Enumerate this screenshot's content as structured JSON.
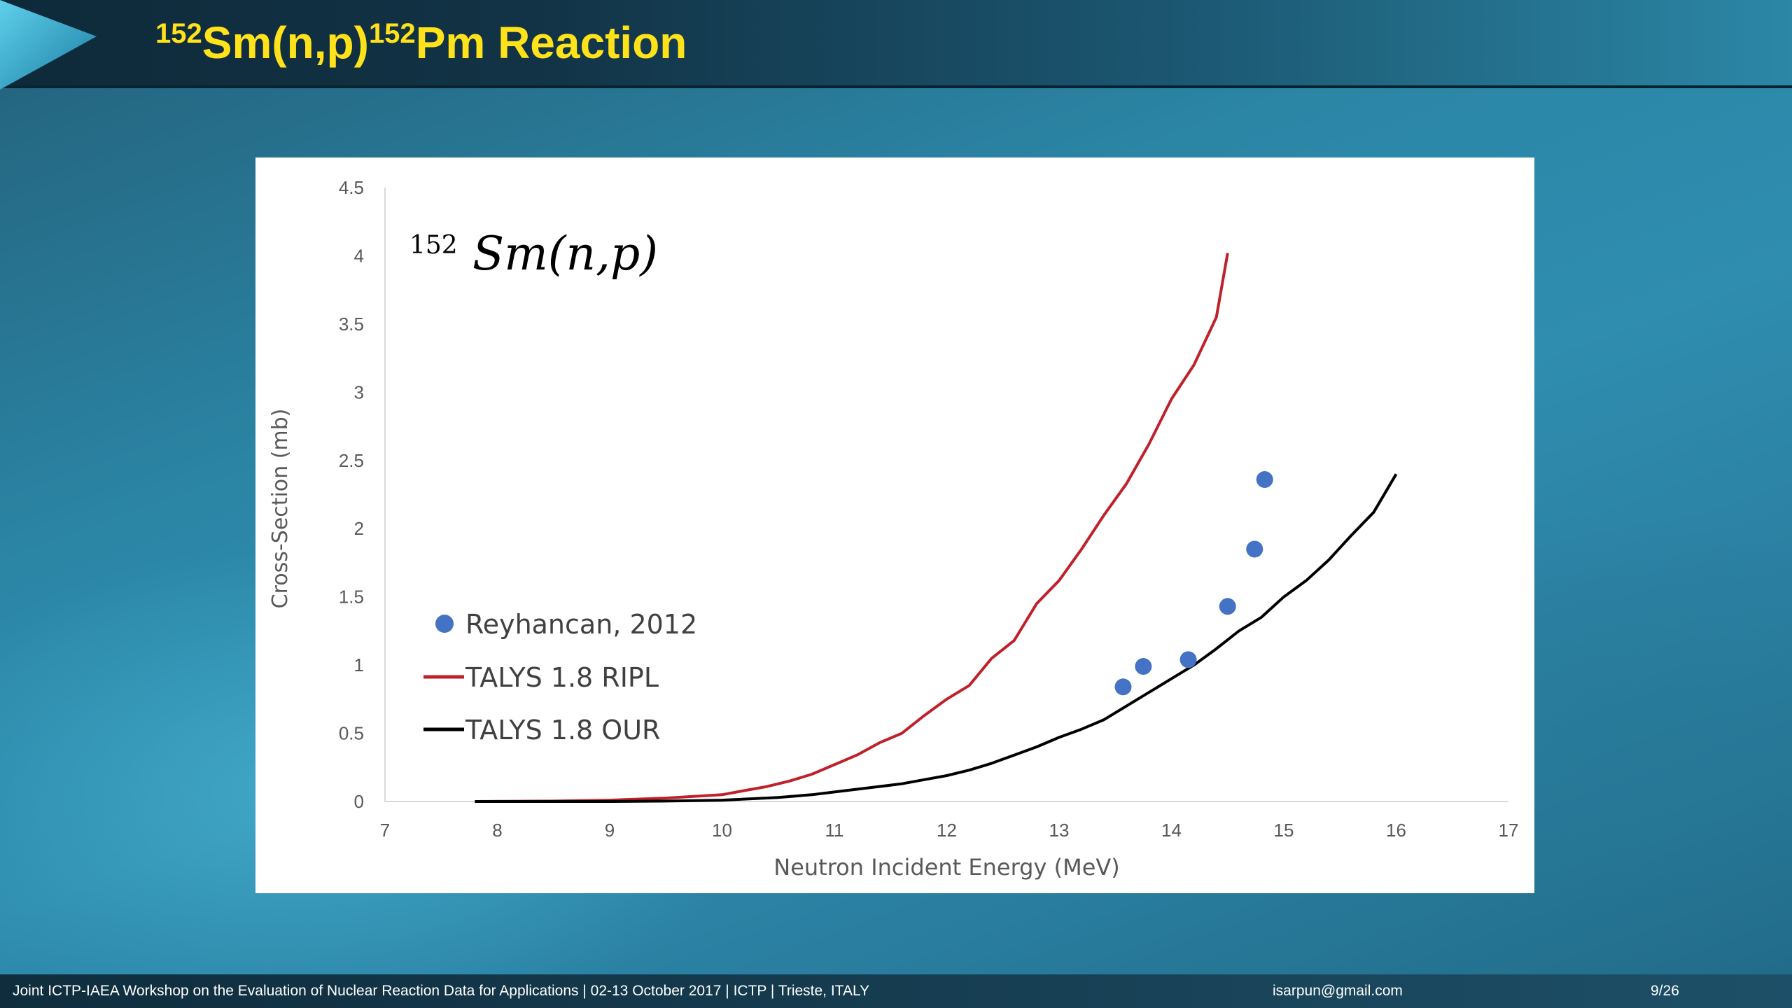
{
  "slide": {
    "title": {
      "sup1": "152",
      "main1": "Sm(n,p)",
      "sup2": "152",
      "main2": "Pm Reaction"
    }
  },
  "footer": {
    "workshop": "Joint ICTP-IAEA Workshop on the Evaluation of Nuclear Reaction Data for Applications |   02-13 October 2017   |   ICTP   |   Trieste, ITALY",
    "email": "isarpun@gmail.com",
    "page": "9/26"
  },
  "colors": {
    "title": "#ffe21a",
    "series_ripl": "#c0202a",
    "series_our": "#000000",
    "series_exp": "#4472c4",
    "axis": "#d9d9d9",
    "tick_text": "#595959"
  },
  "chart_data": {
    "type": "scatter",
    "annotation": {
      "sup": "152",
      "main": "Sm(n,p)"
    },
    "xlabel": "Neutron Incident Energy (MeV)",
    "ylabel": "Cross-Section  (mb)",
    "xlim": [
      7,
      17
    ],
    "ylim": [
      0,
      4.5
    ],
    "xticks": [
      "7",
      "8",
      "9",
      "10",
      "11",
      "12",
      "13",
      "14",
      "15",
      "16",
      "17"
    ],
    "yticks": [
      "0",
      "0.5",
      "1",
      "1.5",
      "2",
      "2.5",
      "3",
      "3.5",
      "4",
      "4.5"
    ],
    "grid": false,
    "legend_position": "left-middle",
    "series": [
      {
        "name": "Reyhancan, 2012",
        "kind": "points",
        "x": [
          13.57,
          13.75,
          14.15,
          14.5,
          14.74,
          14.83
        ],
        "y": [
          0.84,
          0.99,
          1.04,
          1.43,
          1.85,
          2.36
        ]
      },
      {
        "name": "TALYS 1.8 RIPL",
        "kind": "line",
        "x": [
          7.8,
          8.5,
          9.0,
          9.5,
          10.0,
          10.2,
          10.4,
          10.6,
          10.8,
          11.0,
          11.2,
          11.4,
          11.6,
          11.8,
          12.0,
          12.2,
          12.4,
          12.6,
          12.8,
          13.0,
          13.2,
          13.4,
          13.6,
          13.8,
          14.0,
          14.2,
          14.4,
          14.5
        ],
        "y": [
          0.0,
          0.003,
          0.01,
          0.025,
          0.05,
          0.08,
          0.11,
          0.15,
          0.2,
          0.27,
          0.34,
          0.43,
          0.5,
          0.63,
          0.75,
          0.85,
          1.05,
          1.18,
          1.45,
          1.62,
          1.85,
          2.1,
          2.33,
          2.62,
          2.95,
          3.2,
          3.55,
          4.02
        ]
      },
      {
        "name": "TALYS 1.8 OUR",
        "kind": "line",
        "x": [
          7.8,
          8.5,
          9.0,
          9.5,
          10.0,
          10.5,
          10.8,
          11.0,
          11.2,
          11.4,
          11.6,
          11.8,
          12.0,
          12.2,
          12.4,
          12.6,
          12.8,
          13.0,
          13.2,
          13.4,
          13.6,
          13.8,
          14.0,
          14.2,
          14.4,
          14.6,
          14.8,
          15.0,
          15.2,
          15.4,
          15.6,
          15.8,
          16.0
        ],
        "y": [
          0.0,
          0.0,
          0.0,
          0.003,
          0.01,
          0.03,
          0.05,
          0.07,
          0.09,
          0.11,
          0.13,
          0.16,
          0.19,
          0.23,
          0.28,
          0.34,
          0.4,
          0.47,
          0.53,
          0.6,
          0.7,
          0.8,
          0.9,
          1.0,
          1.12,
          1.25,
          1.35,
          1.5,
          1.62,
          1.77,
          1.95,
          2.12,
          2.4
        ]
      }
    ]
  }
}
